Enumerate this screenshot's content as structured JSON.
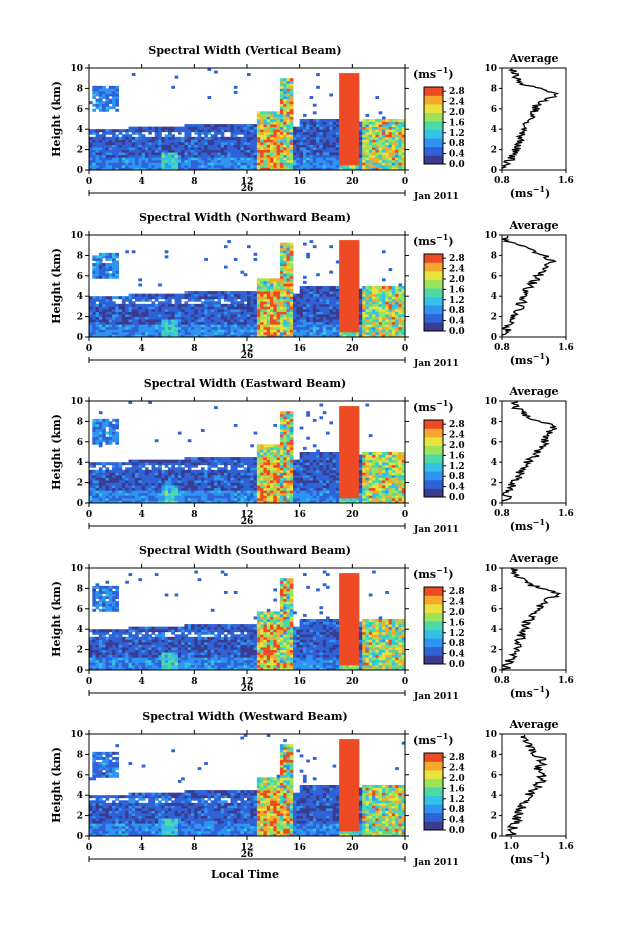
{
  "shared": {
    "xlabel": "Local Time",
    "ylabel": "Height (km)",
    "x_ticks": [
      "0",
      "4",
      "8",
      "12",
      "16",
      "20",
      "0"
    ],
    "y_ticks": [
      "0",
      "2",
      "4",
      "6",
      "8",
      "10"
    ],
    "date_day": "26",
    "date_month": "Jan 2011",
    "unit_label": "(ms",
    "unit_exp": "−1",
    "unit_close": ")",
    "colorbar_ticks": [
      "0.0",
      "0.4",
      "0.8",
      "1.2",
      "1.6",
      "2.0",
      "2.4",
      "2.8"
    ],
    "colorbar_colors": [
      "#3a3c8f",
      "#2f62d6",
      "#2f93f2",
      "#33c2e6",
      "#4cd9a6",
      "#9be35a",
      "#e8e23c",
      "#f6a82c",
      "#ee4a24"
    ],
    "profile_title": "Average",
    "profile_unit": "(ms",
    "profile_y_ticks": [
      "0",
      "2",
      "4",
      "6",
      "8",
      "10"
    ]
  },
  "chart_data": [
    {
      "type": "heatmap",
      "title": "Spectral Width (Vertical Beam)",
      "xlim": [
        0,
        24
      ],
      "ylim": [
        0,
        10
      ],
      "clim": [
        0,
        2.8
      ],
      "profile": {
        "x_ticks": [
          "0.8",
          "1.6"
        ],
        "xlim": [
          0.8,
          1.6
        ],
        "heights": [
          0.5,
          1.5,
          2.5,
          3.5,
          4.5,
          5.5,
          6.5,
          7.5,
          8.5,
          9.5
        ],
        "values": [
          0.85,
          0.95,
          1.0,
          1.05,
          1.1,
          1.2,
          1.25,
          1.5,
          1.0,
          0.95
        ]
      }
    },
    {
      "type": "heatmap",
      "title": "Spectral Width (Northward Beam)",
      "xlim": [
        0,
        24
      ],
      "ylim": [
        0,
        10
      ],
      "clim": [
        0,
        2.8
      ],
      "profile": {
        "x_ticks": [
          "0.8",
          "1.6"
        ],
        "xlim": [
          0.8,
          1.6
        ],
        "heights": [
          0.5,
          1.5,
          2.5,
          3.5,
          4.5,
          5.5,
          6.5,
          7.5,
          8.5,
          9.5
        ],
        "values": [
          0.85,
          0.9,
          1.0,
          1.05,
          1.1,
          1.2,
          1.3,
          1.45,
          1.15,
          0.85
        ]
      }
    },
    {
      "type": "heatmap",
      "title": "Spectral Width (Eastward Beam)",
      "xlim": [
        0,
        24
      ],
      "ylim": [
        0,
        10
      ],
      "clim": [
        0,
        2.8
      ],
      "profile": {
        "x_ticks": [
          "0.8",
          "1.6"
        ],
        "xlim": [
          0.8,
          1.6
        ],
        "heights": [
          0.5,
          1.5,
          2.5,
          3.5,
          4.5,
          5.5,
          6.5,
          7.5,
          8.5,
          9.5
        ],
        "values": [
          0.85,
          0.9,
          1.0,
          1.05,
          1.2,
          1.3,
          1.35,
          1.45,
          1.1,
          0.95
        ]
      }
    },
    {
      "type": "heatmap",
      "title": "Spectral Width (Southward Beam)",
      "xlim": [
        0,
        24
      ],
      "ylim": [
        0,
        10
      ],
      "clim": [
        0,
        2.8
      ],
      "profile": {
        "x_ticks": [
          "0.8",
          "1.6"
        ],
        "xlim": [
          0.8,
          1.6
        ],
        "heights": [
          0.5,
          1.5,
          2.5,
          3.5,
          4.5,
          5.5,
          6.5,
          7.5,
          8.5,
          9.5
        ],
        "values": [
          0.85,
          0.95,
          1.0,
          1.05,
          1.1,
          1.2,
          1.3,
          1.5,
          1.1,
          0.95
        ]
      }
    },
    {
      "type": "heatmap",
      "title": "Spectral Width (Westward Beam)",
      "xlim": [
        0,
        24
      ],
      "ylim": [
        0,
        10
      ],
      "clim": [
        0,
        2.8
      ],
      "profile": {
        "x_ticks": [
          "1.0",
          "1.6"
        ],
        "xlim": [
          0.9,
          1.6
        ],
        "heights": [
          0.5,
          1.5,
          2.5,
          3.5,
          4.5,
          5.5,
          6.5,
          7.5,
          8.5,
          9.5
        ],
        "values": [
          1.0,
          1.05,
          1.1,
          1.15,
          1.25,
          1.35,
          1.3,
          1.35,
          1.2,
          1.15
        ]
      }
    }
  ]
}
